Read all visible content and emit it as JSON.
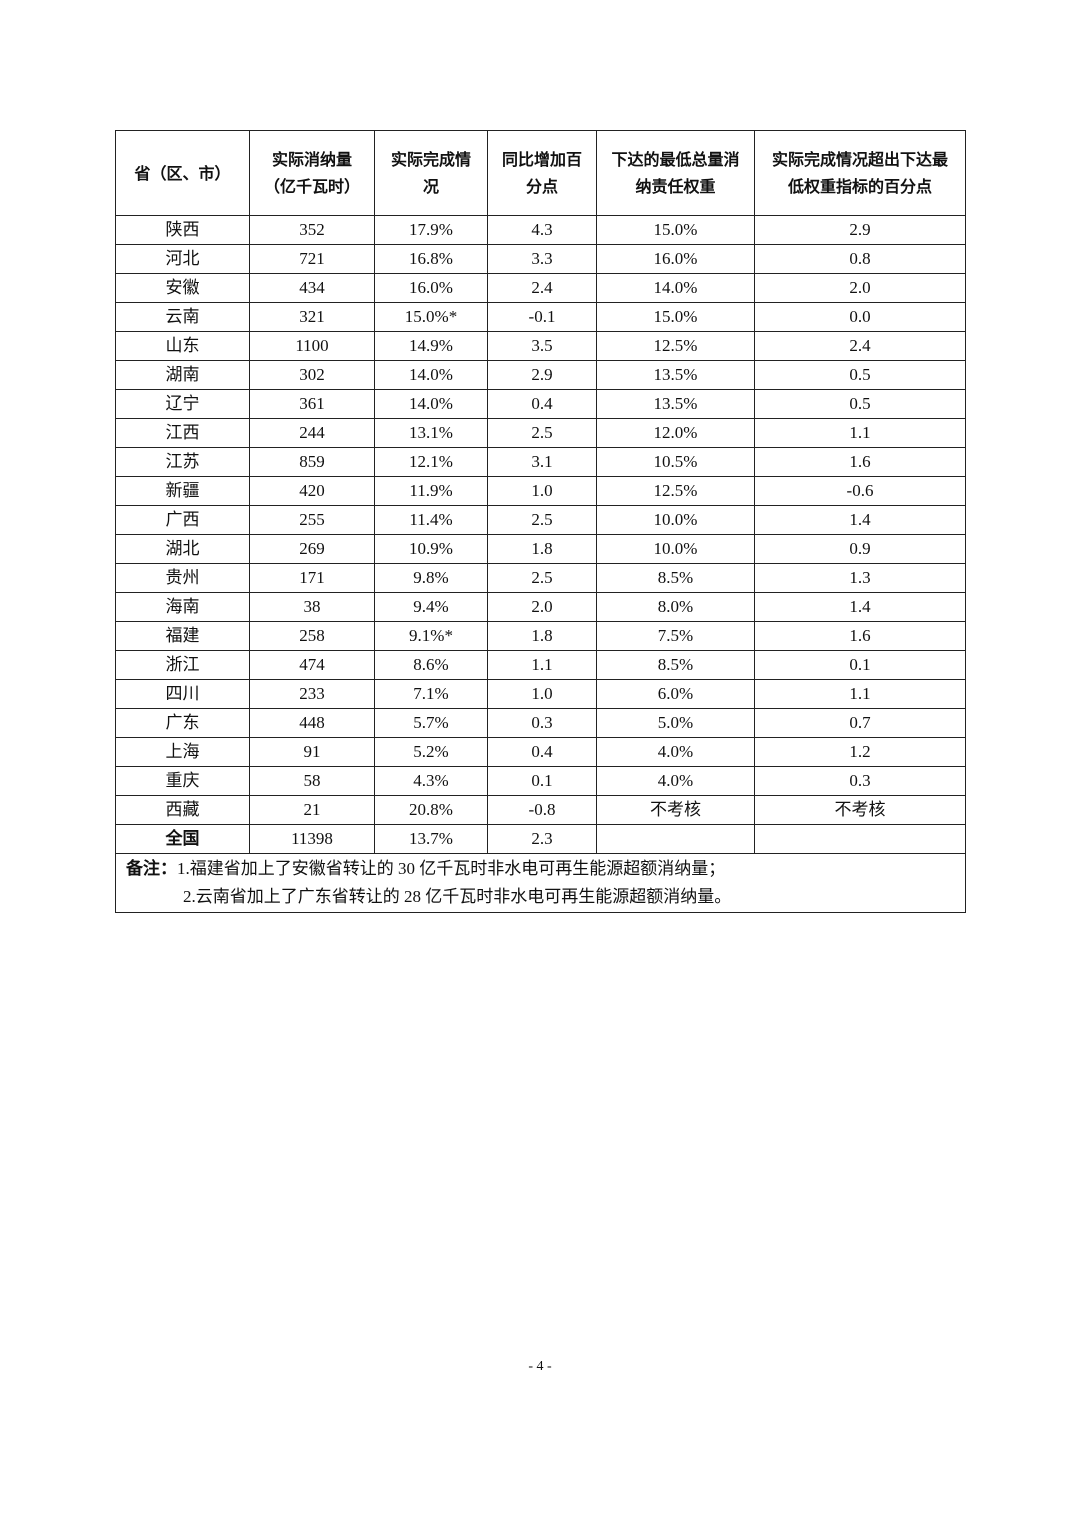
{
  "table": {
    "headers": [
      "省（区、市）",
      "实际消纳量（亿千瓦时）",
      "实际完成情况",
      "同比增加百分点",
      "下达的最低总量消纳责任权重",
      "实际完成情况超出下达最低权重指标的百分点"
    ],
    "rows": [
      [
        "陕西",
        "352",
        "17.9%",
        "4.3",
        "15.0%",
        "2.9"
      ],
      [
        "河北",
        "721",
        "16.8%",
        "3.3",
        "16.0%",
        "0.8"
      ],
      [
        "安徽",
        "434",
        "16.0%",
        "2.4",
        "14.0%",
        "2.0"
      ],
      [
        "云南",
        "321",
        "15.0%*",
        "-0.1",
        "15.0%",
        "0.0"
      ],
      [
        "山东",
        "1100",
        "14.9%",
        "3.5",
        "12.5%",
        "2.4"
      ],
      [
        "湖南",
        "302",
        "14.0%",
        "2.9",
        "13.5%",
        "0.5"
      ],
      [
        "辽宁",
        "361",
        "14.0%",
        "0.4",
        "13.5%",
        "0.5"
      ],
      [
        "江西",
        "244",
        "13.1%",
        "2.5",
        "12.0%",
        "1.1"
      ],
      [
        "江苏",
        "859",
        "12.1%",
        "3.1",
        "10.5%",
        "1.6"
      ],
      [
        "新疆",
        "420",
        "11.9%",
        "1.0",
        "12.5%",
        "-0.6"
      ],
      [
        "广西",
        "255",
        "11.4%",
        "2.5",
        "10.0%",
        "1.4"
      ],
      [
        "湖北",
        "269",
        "10.9%",
        "1.8",
        "10.0%",
        "0.9"
      ],
      [
        "贵州",
        "171",
        "9.8%",
        "2.5",
        "8.5%",
        "1.3"
      ],
      [
        "海南",
        "38",
        "9.4%",
        "2.0",
        "8.0%",
        "1.4"
      ],
      [
        "福建",
        "258",
        "9.1%*",
        "1.8",
        "7.5%",
        "1.6"
      ],
      [
        "浙江",
        "474",
        "8.6%",
        "1.1",
        "8.5%",
        "0.1"
      ],
      [
        "四川",
        "233",
        "7.1%",
        "1.0",
        "6.0%",
        "1.1"
      ],
      [
        "广东",
        "448",
        "5.7%",
        "0.3",
        "5.0%",
        "0.7"
      ],
      [
        "上海",
        "91",
        "5.2%",
        "0.4",
        "4.0%",
        "1.2"
      ],
      [
        "重庆",
        "58",
        "4.3%",
        "0.1",
        "4.0%",
        "0.3"
      ],
      [
        "西藏",
        "21",
        "20.8%",
        "-0.8",
        "不考核",
        "不考核"
      ]
    ],
    "total": [
      "全国",
      "11398",
      "13.7%",
      "2.3",
      "",
      ""
    ],
    "note_label": "备注：",
    "note_1": "1.福建省加上了安徽省转让的 30 亿千瓦时非水电可再生能源超额消纳量；",
    "note_2": "2.云南省加上了广东省转让的 28 亿千瓦时非水电可再生能源超额消纳量。"
  },
  "page_number": "- 4 -"
}
